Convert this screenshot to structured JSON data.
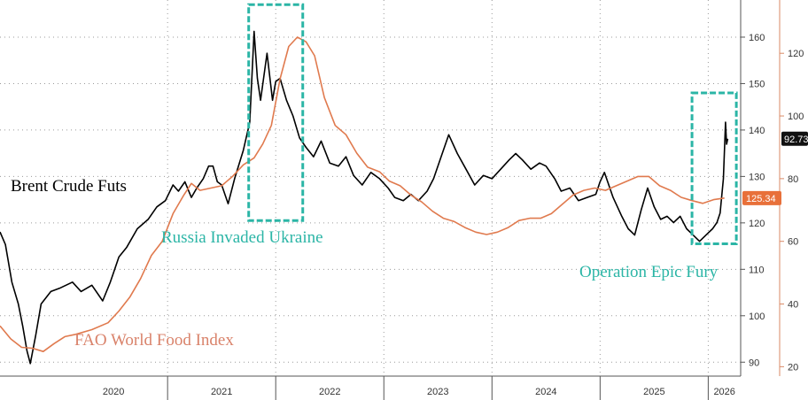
{
  "chart_data": {
    "type": "line",
    "title": "",
    "x_range": [
      2019.45,
      2026.3
    ],
    "x_ticks": [
      "2020",
      "2021",
      "2022",
      "2023",
      "2024",
      "2025",
      "2026"
    ],
    "y_left": {
      "ticks": [
        90,
        100,
        110,
        120,
        130,
        140,
        150,
        160
      ],
      "range": [
        87,
        168
      ]
    },
    "y_right": {
      "ticks": [
        20,
        40,
        60,
        80,
        100,
        120
      ],
      "range": [
        17,
        137
      ]
    },
    "grid": true,
    "series": [
      {
        "name": "Brent Crude Futs",
        "axis": "right",
        "color": "#000000",
        "last_value": "92.73",
        "points": [
          [
            2019.45,
            63
          ],
          [
            2019.5,
            59
          ],
          [
            2019.56,
            47
          ],
          [
            2019.62,
            40
          ],
          [
            2019.66,
            33
          ],
          [
            2019.7,
            25
          ],
          [
            2019.73,
            21
          ],
          [
            2019.78,
            30
          ],
          [
            2019.83,
            40
          ],
          [
            2019.92,
            44
          ],
          [
            2020.0,
            45
          ],
          [
            2020.12,
            47
          ],
          [
            2020.2,
            44
          ],
          [
            2020.3,
            46
          ],
          [
            2020.4,
            41
          ],
          [
            2020.47,
            47
          ],
          [
            2020.55,
            55
          ],
          [
            2020.62,
            58
          ],
          [
            2020.72,
            64
          ],
          [
            2020.82,
            67
          ],
          [
            2020.9,
            71
          ],
          [
            2020.98,
            73
          ],
          [
            2021.05,
            78
          ],
          [
            2021.1,
            76
          ],
          [
            2021.16,
            79
          ],
          [
            2021.22,
            74
          ],
          [
            2021.27,
            77
          ],
          [
            2021.33,
            80
          ],
          [
            2021.38,
            84
          ],
          [
            2021.42,
            84
          ],
          [
            2021.46,
            79
          ],
          [
            2021.5,
            78
          ],
          [
            2021.56,
            72
          ],
          [
            2021.62,
            80
          ],
          [
            2021.7,
            89
          ],
          [
            2021.76,
            98
          ],
          [
            2021.8,
            127
          ],
          [
            2021.83,
            112
          ],
          [
            2021.86,
            105
          ],
          [
            2021.92,
            120
          ],
          [
            2021.97,
            105
          ],
          [
            2022.0,
            111
          ],
          [
            2022.04,
            112
          ],
          [
            2022.1,
            105
          ],
          [
            2022.16,
            100
          ],
          [
            2022.22,
            93
          ],
          [
            2022.28,
            90
          ],
          [
            2022.35,
            87
          ],
          [
            2022.42,
            92
          ],
          [
            2022.5,
            85
          ],
          [
            2022.58,
            84
          ],
          [
            2022.65,
            87
          ],
          [
            2022.72,
            81
          ],
          [
            2022.8,
            78
          ],
          [
            2022.88,
            82
          ],
          [
            2022.96,
            80
          ],
          [
            2023.04,
            77
          ],
          [
            2023.1,
            74
          ],
          [
            2023.18,
            73
          ],
          [
            2023.25,
            75
          ],
          [
            2023.32,
            73
          ],
          [
            2023.4,
            76
          ],
          [
            2023.46,
            80
          ],
          [
            2023.52,
            86
          ],
          [
            2023.6,
            94
          ],
          [
            2023.68,
            88
          ],
          [
            2023.76,
            83
          ],
          [
            2023.84,
            78
          ],
          [
            2023.92,
            81
          ],
          [
            2024.0,
            80
          ],
          [
            2024.08,
            83
          ],
          [
            2024.16,
            86
          ],
          [
            2024.22,
            88
          ],
          [
            2024.28,
            86
          ],
          [
            2024.36,
            83
          ],
          [
            2024.44,
            85
          ],
          [
            2024.5,
            84
          ],
          [
            2024.58,
            80
          ],
          [
            2024.64,
            76
          ],
          [
            2024.72,
            77
          ],
          [
            2024.8,
            73
          ],
          [
            2024.88,
            74
          ],
          [
            2024.96,
            75
          ],
          [
            2025.0,
            79
          ],
          [
            2025.04,
            82
          ],
          [
            2025.12,
            74
          ],
          [
            2025.2,
            68
          ],
          [
            2025.26,
            64
          ],
          [
            2025.32,
            62
          ],
          [
            2025.38,
            70
          ],
          [
            2025.44,
            77
          ],
          [
            2025.5,
            71
          ],
          [
            2025.56,
            67
          ],
          [
            2025.62,
            68
          ],
          [
            2025.68,
            66
          ],
          [
            2025.74,
            68
          ],
          [
            2025.8,
            64
          ],
          [
            2025.86,
            62
          ],
          [
            2025.92,
            60
          ],
          [
            2025.98,
            62
          ],
          [
            2026.04,
            64
          ],
          [
            2026.08,
            66
          ],
          [
            2026.11,
            69
          ],
          [
            2026.14,
            80
          ],
          [
            2026.16,
            98
          ],
          [
            2026.17,
            91
          ],
          [
            2026.18,
            92.73
          ]
        ]
      },
      {
        "name": "FAO World Food Index",
        "axis": "left",
        "color": "#e07a4e",
        "last_value": "125.34",
        "points": [
          [
            2019.45,
            97.8
          ],
          [
            2019.55,
            95
          ],
          [
            2019.65,
            93.2
          ],
          [
            2019.75,
            93
          ],
          [
            2019.85,
            92.3
          ],
          [
            2019.95,
            94
          ],
          [
            2020.05,
            95.5
          ],
          [
            2020.15,
            96
          ],
          [
            2020.3,
            97
          ],
          [
            2020.45,
            98.5
          ],
          [
            2020.55,
            101
          ],
          [
            2020.65,
            104
          ],
          [
            2020.75,
            108
          ],
          [
            2020.85,
            113
          ],
          [
            2020.95,
            116
          ],
          [
            2021.05,
            122
          ],
          [
            2021.15,
            126
          ],
          [
            2021.22,
            128.5
          ],
          [
            2021.3,
            127
          ],
          [
            2021.4,
            127.5
          ],
          [
            2021.5,
            128
          ],
          [
            2021.6,
            130
          ],
          [
            2021.7,
            132.5
          ],
          [
            2021.8,
            134
          ],
          [
            2021.88,
            137
          ],
          [
            2021.96,
            141
          ],
          [
            2022.04,
            151
          ],
          [
            2022.12,
            158
          ],
          [
            2022.2,
            160
          ],
          [
            2022.28,
            159
          ],
          [
            2022.36,
            156
          ],
          [
            2022.45,
            147
          ],
          [
            2022.55,
            141
          ],
          [
            2022.65,
            139
          ],
          [
            2022.75,
            135
          ],
          [
            2022.85,
            132
          ],
          [
            2022.96,
            131
          ],
          [
            2023.05,
            129
          ],
          [
            2023.15,
            128
          ],
          [
            2023.25,
            126
          ],
          [
            2023.35,
            124.5
          ],
          [
            2023.45,
            122.5
          ],
          [
            2023.55,
            121
          ],
          [
            2023.65,
            120.3
          ],
          [
            2023.75,
            119
          ],
          [
            2023.85,
            118
          ],
          [
            2023.95,
            117.5
          ],
          [
            2024.05,
            118
          ],
          [
            2024.15,
            119
          ],
          [
            2024.25,
            120.5
          ],
          [
            2024.35,
            121
          ],
          [
            2024.45,
            121
          ],
          [
            2024.55,
            122
          ],
          [
            2024.65,
            124
          ],
          [
            2024.75,
            126
          ],
          [
            2024.85,
            127
          ],
          [
            2024.95,
            127.5
          ],
          [
            2025.05,
            127
          ],
          [
            2025.15,
            128
          ],
          [
            2025.25,
            129
          ],
          [
            2025.35,
            130
          ],
          [
            2025.45,
            130
          ],
          [
            2025.55,
            128
          ],
          [
            2025.65,
            127
          ],
          [
            2025.75,
            125.5
          ],
          [
            2025.85,
            124.8
          ],
          [
            2025.95,
            124.2
          ],
          [
            2026.05,
            125
          ],
          [
            2026.15,
            125.34
          ]
        ]
      }
    ],
    "annotations": [
      "Brent Crude Futs",
      "Russia Invaded Ukraine",
      "FAO World Food Index",
      "Operation Epic Fury"
    ]
  },
  "colors": {
    "brent": "#000000",
    "fao": "#e07a4e",
    "fao_label": "#d9826a",
    "highlight": "#2bb5a6",
    "brent_badge": "#111111",
    "fao_badge": "#e8703a"
  }
}
